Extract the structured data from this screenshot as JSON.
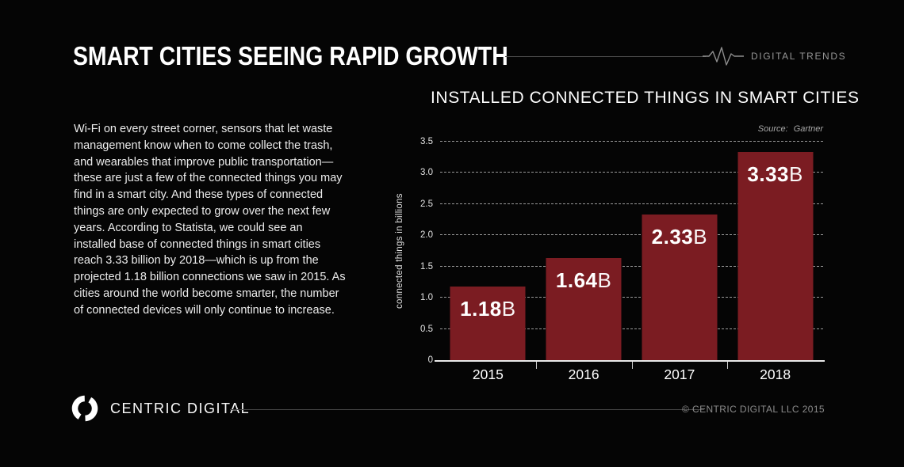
{
  "header": {
    "title": "SMART CITIES SEEING RAPID GROWTH",
    "brand": "DIGITAL TRENDS"
  },
  "intro": {
    "text": "Wi-Fi on every street corner, sensors that let waste management know when to come collect the trash, and wearables that improve public transportation—these are just a few of the connected things you may find in a smart city. And these types of connected things are only expected to grow over the next few years. According to Statista, we could see an installed base of connected things in smart cities reach 3.33 billion by 2018—which is up from the projected 1.18 billion connections we saw in 2015. As cities around the world become smarter, the number of connected devices will only continue to increase."
  },
  "chart_data": {
    "type": "bar",
    "title": "INSTALLED CONNECTED THINGS IN SMART CITIES",
    "source_label": "Source:",
    "source_value": "Gartner",
    "categories": [
      "2015",
      "2016",
      "2017",
      "2018"
    ],
    "values": [
      1.18,
      1.64,
      2.33,
      3.33
    ],
    "bar_labels": [
      "1.18B",
      "1.64B",
      "2.33B",
      "3.33B"
    ],
    "ylabel": "connected things in billions",
    "xlabel": "",
    "ylim": [
      0,
      3.5
    ],
    "yticks": [
      0,
      0.5,
      1.0,
      1.5,
      2.0,
      2.5,
      3.0,
      3.5
    ],
    "ytick_labels": [
      "0",
      "0.5",
      "1.0",
      "1.5",
      "2.0",
      "2.5",
      "3.0",
      "3.5"
    ],
    "grid": true,
    "gridline_style": "dashed",
    "legend": false,
    "bar_color": "#7b1c22"
  },
  "icons": {
    "brand_icon": "pulse-wave-icon",
    "logo_icon": "centric-circle-arrows-icon"
  },
  "colors": {
    "background": "#050505",
    "bar": "#7b1c22",
    "muted_text": "#969696",
    "grid": "#9a9a9a"
  },
  "footer": {
    "logo_text": "CENTRIC DIGITAL",
    "copyright": "© CENTRIC DIGITAL LLC 2015"
  }
}
